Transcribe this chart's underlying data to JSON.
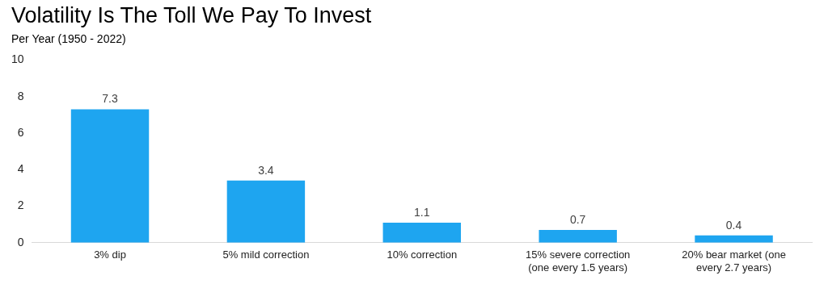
{
  "chart_data": {
    "type": "bar",
    "title": "Volatility Is The Toll We Pay To Invest",
    "subtitle": "Per Year (1950 - 2022)",
    "categories": [
      "3% dip",
      "5% mild correction",
      "10% correction",
      "15% severe correction (one every 1.5 years)",
      "20% bear market (one every 2.7 years)"
    ],
    "values": [
      7.3,
      3.4,
      1.1,
      0.7,
      0.4
    ],
    "color": "#1ea5f0",
    "ylim": [
      0,
      10
    ],
    "yticks": [
      0,
      2,
      4,
      6,
      8,
      10
    ],
    "grid": false,
    "data_labels": true
  }
}
